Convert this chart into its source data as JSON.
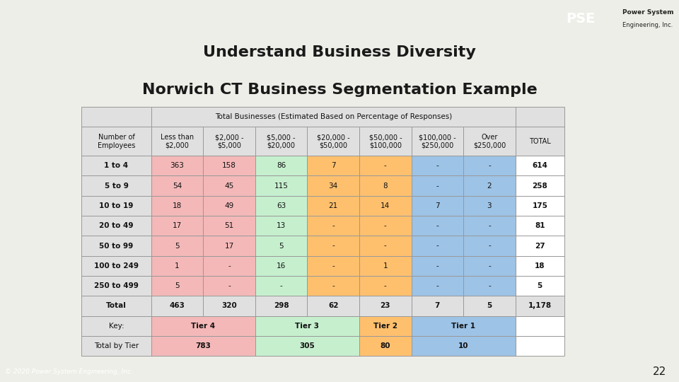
{
  "title_line1": "Understand Business Diversity",
  "title_line2": "Norwich CT Business Segmentation Example",
  "header_row1_text": "Total Businesses (Estimated Based on Percentage of Responses)",
  "col_headers": [
    "Number of\nEmployees",
    "Less than\n$2,000",
    "$2,000 -\n$5,000",
    "$5,000 -\n$20,000",
    "$20,000 -\n$50,000",
    "$50,000 -\n$100,000",
    "$100,000 -\n$250,000",
    "Over\n$250,000",
    "TOTAL"
  ],
  "data_rows": [
    [
      "1 to 4",
      "363",
      "158",
      "86",
      "7",
      "-",
      "-",
      "-",
      "614"
    ],
    [
      "5 to 9",
      "54",
      "45",
      "115",
      "34",
      "8",
      "-",
      "2",
      "258"
    ],
    [
      "10 to 19",
      "18",
      "49",
      "63",
      "21",
      "14",
      "7",
      "3",
      "175"
    ],
    [
      "20 to 49",
      "17",
      "51",
      "13",
      "-",
      "-",
      "-",
      "-",
      "81"
    ],
    [
      "50 to 99",
      "5",
      "17",
      "5",
      "-",
      "-",
      "-",
      "-",
      "27"
    ],
    [
      "100 to 249",
      "1",
      "-",
      "16",
      "-",
      "1",
      "-",
      "-",
      "18"
    ],
    [
      "250 to 499",
      "5",
      "-",
      "-",
      "-",
      "-",
      "-",
      "-",
      "5"
    ]
  ],
  "total_row": [
    "Total",
    "463",
    "320",
    "298",
    "62",
    "23",
    "7",
    "5",
    "1,178"
  ],
  "key_labels": [
    "Tier 4",
    "Tier 3",
    "Tier 2",
    "Tier 1"
  ],
  "tier_totals": [
    "783",
    "305",
    "80",
    "10"
  ],
  "bg_color": "#eeeee8",
  "top_bar_color": "#8fa8c8",
  "footer_bar_color": "#7d9b7d",
  "pse_logo_bg": "#b8922a",
  "pse_sidebar_color": "#8fa88a",
  "tier4_color": "#f4b8b8",
  "tier3_color": "#c6efce",
  "tier2_color": "#ffc06e",
  "tier1_color": "#9dc3e6",
  "header_bg": "#e0e0e0",
  "total_col_bg": "#ffffff",
  "row_label_bg": "#e0e0e0",
  "border_color": "#999999",
  "footer_text": "© 2020 Power System Engineering, Inc.",
  "page_num": "22"
}
